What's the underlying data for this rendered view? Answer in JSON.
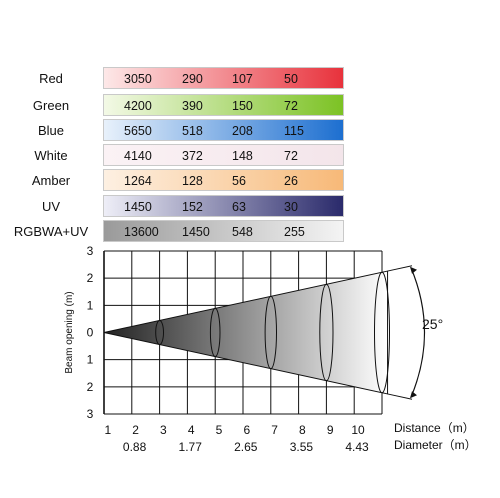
{
  "table": {
    "rows": [
      {
        "label": "Red",
        "values": [
          "3050",
          "290",
          "107",
          "50"
        ],
        "color_start": "#fde8e8",
        "color_end": "#e8323c",
        "text_color": "#111111"
      },
      {
        "label": "Green",
        "values": [
          "4200",
          "390",
          "150",
          "72"
        ],
        "color_start": "#f3f9e6",
        "color_end": "#7cc224",
        "text_color": "#111111"
      },
      {
        "label": "Blue",
        "values": [
          "5650",
          "518",
          "208",
          "115"
        ],
        "color_start": "#e8f1fb",
        "color_end": "#1d6fd0",
        "text_color": "#111111"
      },
      {
        "label": "White",
        "values": [
          "4140",
          "372",
          "148",
          "72"
        ],
        "color_start": "#fbf2f5",
        "color_end": "#f3e5ea",
        "text_color": "#111111"
      },
      {
        "label": "Amber",
        "values": [
          "1264",
          "128",
          "56",
          "26"
        ],
        "color_start": "#fdf0e2",
        "color_end": "#f7b978",
        "text_color": "#111111"
      },
      {
        "label": "UV",
        "values": [
          "1450",
          "152",
          "63",
          "30"
        ],
        "color_start": "#eeeef7",
        "color_end": "#2a2a6b",
        "text_color": "#111111"
      },
      {
        "label": "RGBWA+UV",
        "values": [
          "13600",
          "1450",
          "548",
          "255"
        ],
        "color_start": "#9a9a9a",
        "color_end": "#f4f4f4",
        "text_color": "#111111"
      }
    ]
  },
  "beam": {
    "y_axis_label": "Beam opening (m)",
    "y_tick_labels": [
      "3",
      "2",
      "1",
      "0",
      "1",
      "2",
      "3"
    ],
    "distance_ticks": [
      "1",
      "2",
      "3",
      "4",
      "5",
      "6",
      "7",
      "8",
      "9",
      "10"
    ],
    "distance_label": "Distance（m）",
    "diameter_ticks": [
      "0.88",
      "1.77",
      "2.65",
      "3.55",
      "4.43"
    ],
    "diameter_label": "Diameter（m）",
    "angle_label": "25°",
    "cone_color_dark": "#222222",
    "cone_color_light": "#ffffff"
  }
}
